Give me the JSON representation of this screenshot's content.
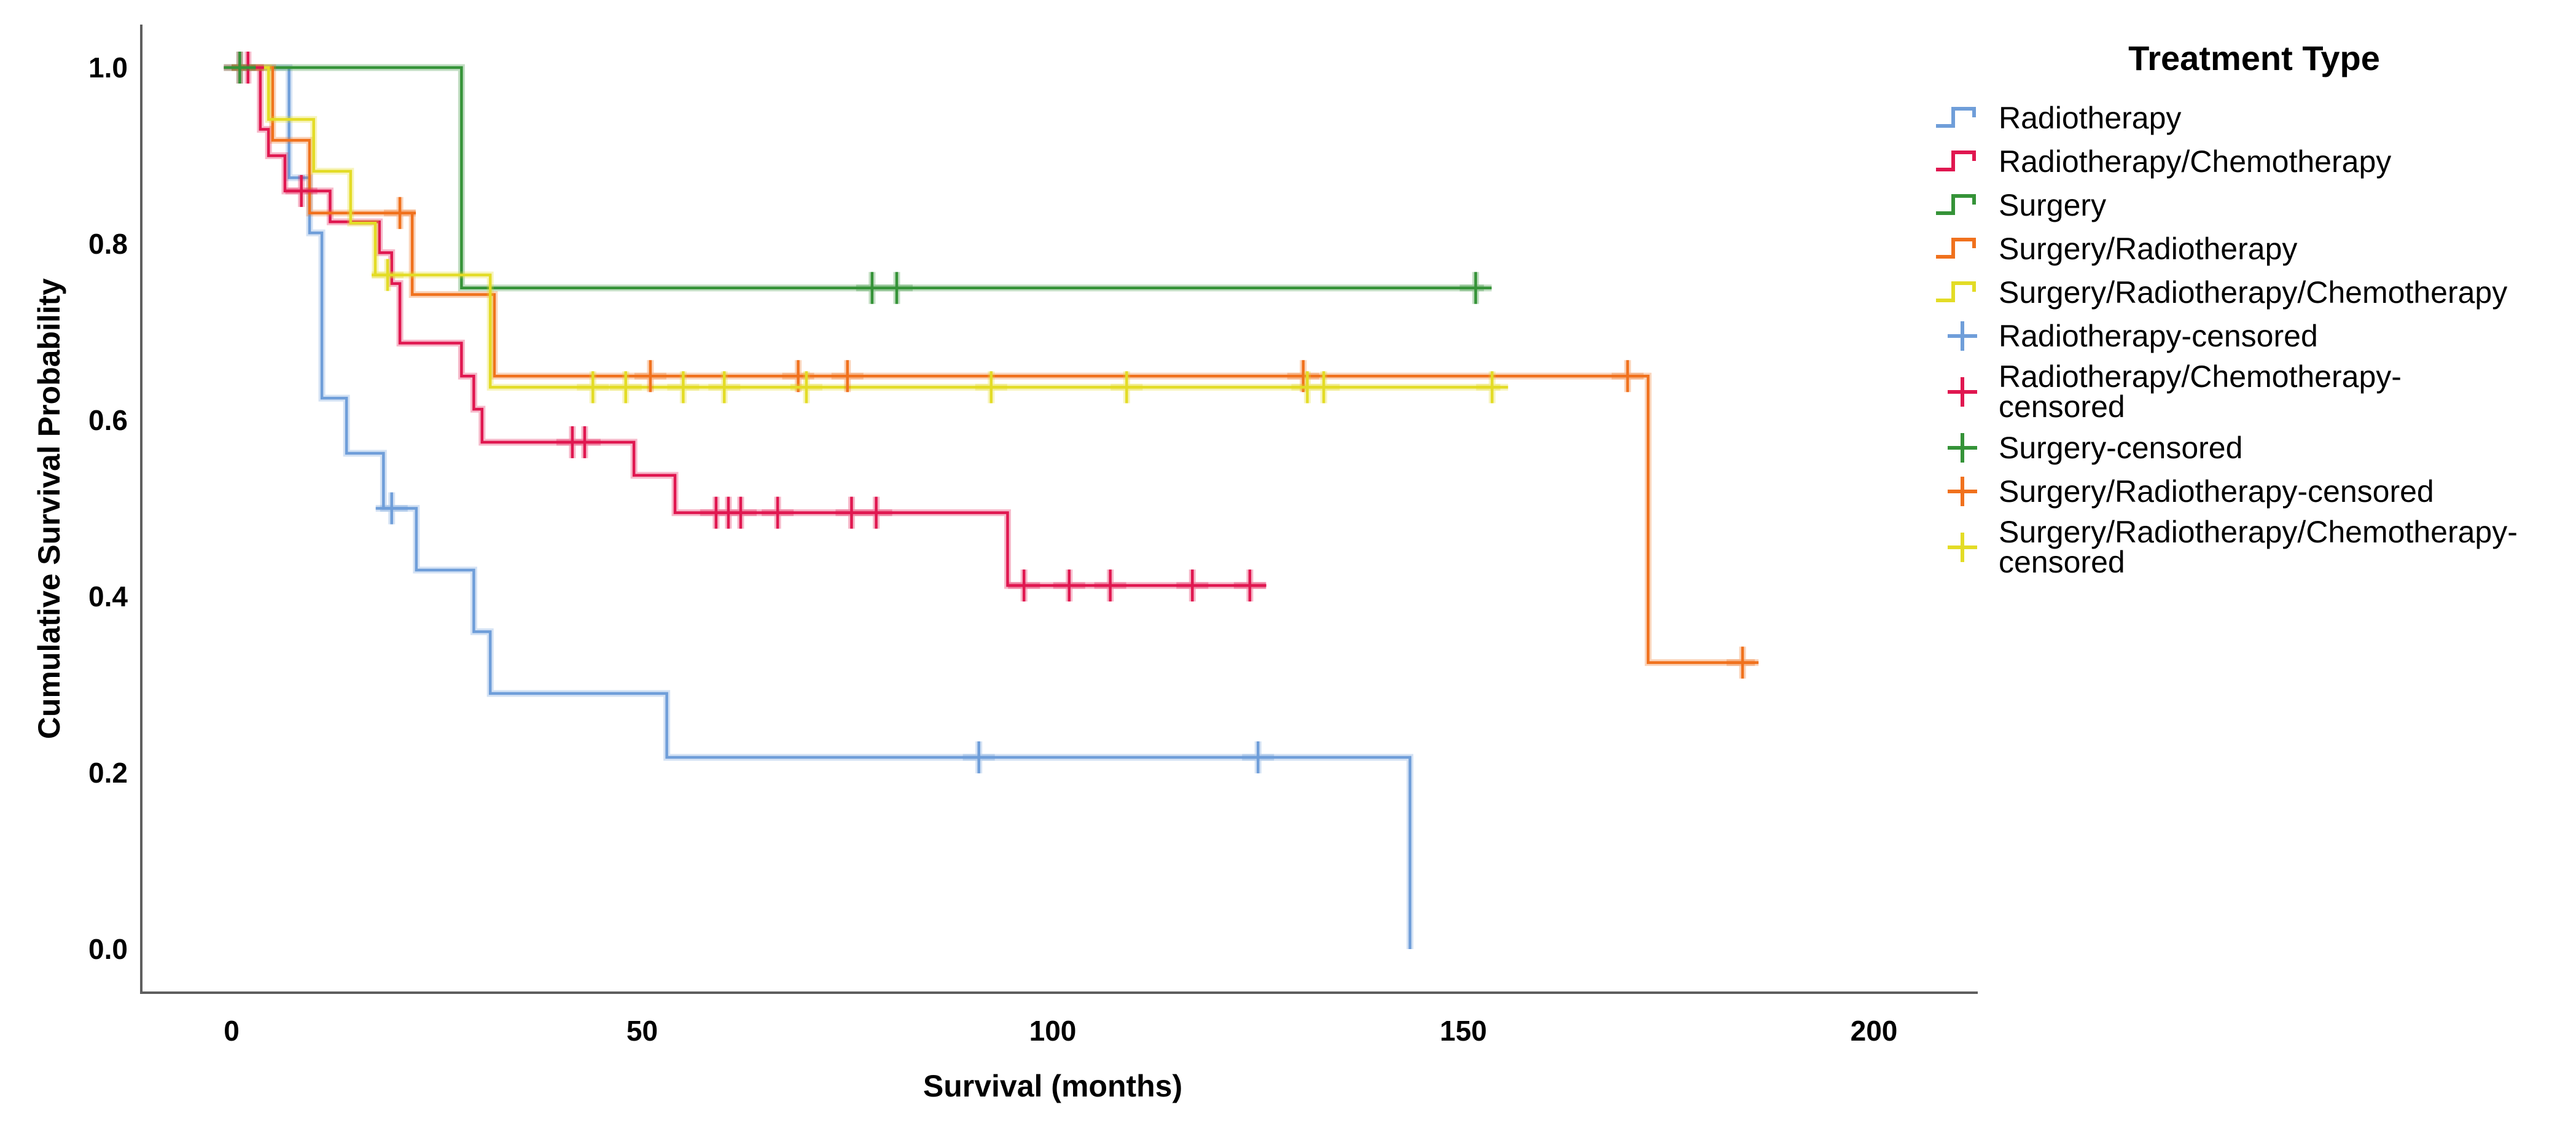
{
  "chart_data": {
    "type": "line",
    "subtype": "kaplan-meier-step",
    "title": "Treatment Type",
    "xlabel": "Survival (months)",
    "ylabel": "Cumulative Survival Probability",
    "xlim": [
      0,
      200
    ],
    "ylim": [
      0.0,
      1.0
    ],
    "grid": false,
    "legend_position": "right",
    "x_ticks": [
      0,
      50,
      100,
      150,
      200
    ],
    "y_ticks": [
      1.0,
      0.8,
      0.6,
      0.4,
      0.2,
      0.0
    ],
    "x_tick_labels": [
      "0",
      "50",
      "100",
      "150",
      "200"
    ],
    "y_tick_labels": [
      "1.0",
      "0.8",
      "0.6",
      "0.4",
      "0.2",
      "0.0"
    ],
    "series": [
      {
        "name": "Radiotherapy",
        "color": "#6f9ed9",
        "start": [
          0,
          1.0
        ],
        "steps": [
          [
            7,
            0.875
          ],
          [
            9.5,
            0.8125
          ],
          [
            11,
            0.625
          ],
          [
            14,
            0.5625
          ],
          [
            18.5,
            0.5
          ],
          [
            22.5,
            0.43
          ],
          [
            29.5,
            0.36
          ],
          [
            31.5,
            0.29
          ],
          [
            53,
            0.2175
          ],
          [
            143.5,
            0.0
          ]
        ],
        "censors": [
          [
            19.5,
            0.5
          ],
          [
            91,
            0.2175
          ],
          [
            125,
            0.2175
          ]
        ],
        "end_time": 143.5
      },
      {
        "name": "Radiotherapy/Chemotherapy",
        "color": "#e01750",
        "start": [
          0,
          1.0
        ],
        "steps": [
          [
            3.5,
            0.93
          ],
          [
            4.5,
            0.9
          ],
          [
            6.5,
            0.86
          ],
          [
            12,
            0.825
          ],
          [
            18,
            0.79
          ],
          [
            19.5,
            0.755
          ],
          [
            20.5,
            0.6875
          ],
          [
            28,
            0.65
          ],
          [
            29.5,
            0.6125
          ],
          [
            30.5,
            0.575
          ],
          [
            49,
            0.5375
          ],
          [
            54,
            0.495
          ],
          [
            94.5,
            0.4125
          ]
        ],
        "censors": [
          [
            1,
            1.0
          ],
          [
            2,
            1.0
          ],
          [
            8.5,
            0.86
          ],
          [
            41.5,
            0.575
          ],
          [
            43,
            0.575
          ],
          [
            59,
            0.495
          ],
          [
            60.5,
            0.495
          ],
          [
            62,
            0.495
          ],
          [
            66.5,
            0.495
          ],
          [
            75.5,
            0.495
          ],
          [
            78.5,
            0.495
          ],
          [
            96.5,
            0.4125
          ],
          [
            102,
            0.4125
          ],
          [
            107,
            0.4125
          ],
          [
            117,
            0.4125
          ],
          [
            124,
            0.4125
          ]
        ],
        "end_time": 126
      },
      {
        "name": "Surgery",
        "color": "#359338",
        "start": [
          0,
          1.0
        ],
        "steps": [
          [
            28,
            0.75
          ]
        ],
        "censors": [
          [
            1,
            1.0
          ],
          [
            78,
            0.75
          ],
          [
            81,
            0.75
          ],
          [
            151.5,
            0.75
          ]
        ],
        "end_time": 152.5
      },
      {
        "name": "Surgery/Radiotherapy",
        "color": "#f0711d",
        "start": [
          0,
          1.0
        ],
        "steps": [
          [
            5,
            0.9175
          ],
          [
            9.5,
            0.835
          ],
          [
            22,
            0.7425
          ],
          [
            32,
            0.65
          ],
          [
            172.5,
            0.325
          ]
        ],
        "censors": [
          [
            20.5,
            0.835
          ],
          [
            51,
            0.65
          ],
          [
            69,
            0.65
          ],
          [
            75,
            0.65
          ],
          [
            130.5,
            0.65
          ],
          [
            170,
            0.65
          ],
          [
            184,
            0.325
          ]
        ],
        "end_time": 185.5
      },
      {
        "name": "Surgery/Radiotherapy/Chemotherapy",
        "color": "#e3dc26",
        "start": [
          0,
          1.0
        ],
        "steps": [
          [
            4.5,
            0.9412
          ],
          [
            10,
            0.8824
          ],
          [
            14.5,
            0.8235
          ],
          [
            17.5,
            0.7647
          ],
          [
            31.5,
            0.6374
          ]
        ],
        "censors": [
          [
            19,
            0.7647
          ],
          [
            44,
            0.6374
          ],
          [
            48,
            0.6374
          ],
          [
            55,
            0.6374
          ],
          [
            60,
            0.6374
          ],
          [
            70,
            0.6374
          ],
          [
            92.5,
            0.6374
          ],
          [
            109,
            0.6374
          ],
          [
            131,
            0.6374
          ],
          [
            133,
            0.6374
          ],
          [
            153.5,
            0.6374
          ]
        ],
        "end_time": 154.5
      }
    ]
  },
  "legend": {
    "title": "Treatment Type",
    "items": [
      {
        "icon": "step-line",
        "color": "#6f9ed9",
        "lines": [
          "Radiotherapy"
        ]
      },
      {
        "icon": "step-line",
        "color": "#e01750",
        "lines": [
          "Radiotherapy/Chemotherapy"
        ]
      },
      {
        "icon": "step-line",
        "color": "#359338",
        "lines": [
          "Surgery"
        ]
      },
      {
        "icon": "step-line",
        "color": "#f0711d",
        "lines": [
          "Surgery/Radiotherapy"
        ]
      },
      {
        "icon": "step-line",
        "color": "#e3dc26",
        "lines": [
          "Surgery/Radiotherapy/Chemotherapy"
        ]
      },
      {
        "icon": "plus",
        "color": "#6f9ed9",
        "lines": [
          "Radiotherapy-censored"
        ]
      },
      {
        "icon": "plus",
        "color": "#e01750",
        "lines": [
          "Radiotherapy/Chemotherapy-",
          "censored"
        ]
      },
      {
        "icon": "plus",
        "color": "#359338",
        "lines": [
          "Surgery-censored"
        ]
      },
      {
        "icon": "plus",
        "color": "#f0711d",
        "lines": [
          "Surgery/Radiotherapy-censored"
        ]
      },
      {
        "icon": "plus",
        "color": "#e3dc26",
        "lines": [
          "Surgery/Radiotherapy/Chemotherapy-",
          "censored"
        ]
      }
    ]
  },
  "axis_style": {
    "line_color": "#5f5f5f"
  }
}
